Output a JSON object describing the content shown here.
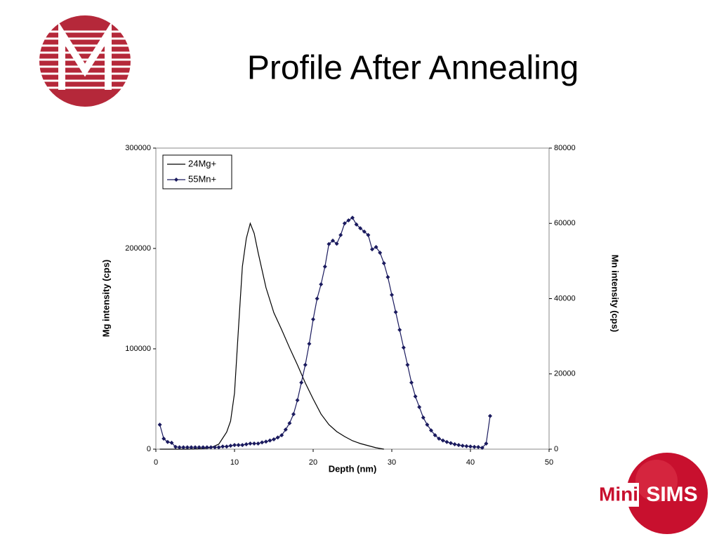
{
  "header": {
    "title": "Profile After Annealing"
  },
  "logo": {
    "mini": "Mini",
    "sims": "SIMS"
  },
  "chart_data": {
    "type": "line",
    "x_label": "Depth (nm)",
    "y_label": "Mg intensity (cps)",
    "y2_label": "Mn intensity (cps)",
    "xlim": [
      0,
      50
    ],
    "xticks": [
      0,
      10,
      20,
      30,
      40,
      50
    ],
    "ylim": [
      0,
      300000
    ],
    "yticks": [
      0,
      100000,
      200000,
      300000
    ],
    "y2lim": [
      0,
      80000
    ],
    "y2ticks": [
      0,
      20000,
      40000,
      60000,
      80000
    ],
    "legend": "top-left",
    "series": [
      {
        "name": "24Mg+",
        "color": "#000000",
        "marker": "none",
        "x": [
          0.5,
          2,
          4,
          6,
          7,
          8,
          9,
          9.5,
          10,
          10.5,
          11,
          11.5,
          12,
          12.5,
          13,
          14,
          15,
          16,
          17,
          18,
          19,
          20,
          21,
          22,
          23,
          24,
          25,
          26,
          27,
          28,
          29
        ],
        "values": [
          0,
          0,
          0,
          500,
          1500,
          5000,
          17000,
          28000,
          56000,
          120000,
          182000,
          210000,
          225000,
          215000,
          196000,
          161000,
          136000,
          119000,
          101000,
          84000,
          66000,
          50000,
          35000,
          24500,
          17500,
          12600,
          8400,
          5600,
          3500,
          1400,
          0
        ]
      },
      {
        "name": "55Mn+",
        "color": "#1a1a5e",
        "marker": "diamond",
        "axis": "y2",
        "x": [
          0.5,
          1,
          1.5,
          2,
          2.5,
          3,
          3.5,
          4,
          4.5,
          5,
          5.5,
          6,
          6.5,
          7,
          7.5,
          8,
          8.5,
          9,
          9.5,
          10,
          10.5,
          11,
          11.5,
          12,
          12.5,
          13,
          13.5,
          14,
          14.5,
          15,
          15.5,
          16,
          16.5,
          17,
          17.5,
          18,
          18.5,
          19,
          19.5,
          20,
          20.5,
          21,
          21.5,
          22,
          22.5,
          23,
          23.5,
          24,
          24.5,
          25,
          25.5,
          26,
          26.5,
          27,
          27.5,
          28,
          28.5,
          29,
          29.5,
          30,
          30.5,
          31,
          31.5,
          32,
          32.5,
          33,
          33.5,
          34,
          34.5,
          35,
          35.5,
          36,
          36.5,
          37,
          37.5,
          38,
          38.5,
          39,
          39.5,
          40,
          40.5,
          41,
          41.5,
          42,
          42.5
        ],
        "values": [
          6500,
          2800,
          1900,
          1700,
          600,
          500,
          500,
          500,
          500,
          500,
          500,
          500,
          500,
          500,
          500,
          500,
          700,
          700,
          900,
          1100,
          1100,
          1100,
          1300,
          1500,
          1500,
          1500,
          1800,
          2000,
          2300,
          2600,
          3100,
          3700,
          5200,
          6900,
          9300,
          13000,
          17700,
          22400,
          28000,
          34500,
          40000,
          43800,
          48500,
          54500,
          55400,
          54600,
          56900,
          60000,
          60800,
          61500,
          59700,
          58700,
          57800,
          56900,
          53100,
          53700,
          52200,
          49400,
          45700,
          41000,
          36400,
          31700,
          27000,
          22400,
          17700,
          14000,
          11200,
          8400,
          6500,
          5000,
          3700,
          2800,
          2300,
          1900,
          1600,
          1300,
          1100,
          900,
          800,
          700,
          600,
          560,
          370,
          1500,
          8800
        ]
      }
    ]
  }
}
